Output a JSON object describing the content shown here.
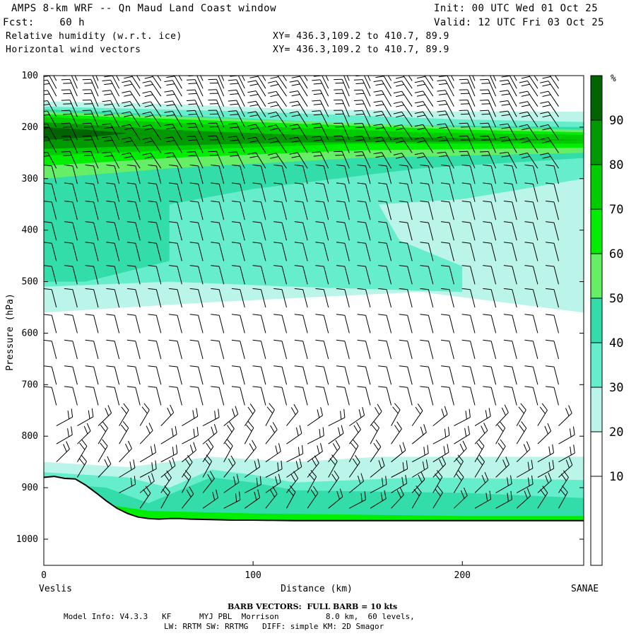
{
  "header": {
    "line1_left": "AMPS 8-km WRF -- Qn Maud Land Coast window",
    "line1_right": "Init: 00 UTC Wed 01 Oct 25",
    "line2_left": "Fcst:    60 h",
    "line2_right": "Valid: 12 UTC Fri 03 Oct 25",
    "line3_left": "Relative humidity (w.r.t. ice)",
    "line3_right": "XY= 436.3,109.2 to 410.7, 89.9",
    "line4_left": "Horizontal wind vectors",
    "line4_right": "XY= 436.3,109.2 to 410.7, 89.9"
  },
  "footer": {
    "barb_title": "BARB VECTORS:  FULL BARB = 10 kts",
    "model_line1": "Model Info: V4.3.3   KF      MYJ PBL  Morrison          8.0 km,  60 levels,",
    "model_line2": "LW: RRTM SW: RRTMG   DIFF: simple KM: 2D Smagor"
  },
  "chart_data": {
    "type": "heatmap",
    "title": "Relative humidity (w.r.t. ice)",
    "xlabel": "Distance (km)",
    "ylabel": "Pressure (hPa)",
    "x_range": [
      0,
      258
    ],
    "y_range": [
      1050,
      100
    ],
    "y_scale": "log",
    "x_ticks": [
      "0",
      "100",
      "200"
    ],
    "x_tick_values": [
      0,
      100,
      200
    ],
    "y_ticks": [
      "100",
      "200",
      "300",
      "400",
      "500",
      "600",
      "700",
      "800",
      "900",
      "1000"
    ],
    "y_tick_values": [
      100,
      200,
      300,
      400,
      500,
      600,
      700,
      800,
      900,
      1000
    ],
    "x_endpoint_left": "Veslis",
    "x_endpoint_right": "SANAE",
    "colorbar": {
      "unit": "%",
      "labels": [
        "90",
        "80",
        "70",
        "60",
        "50",
        "40",
        "30",
        "20",
        "10"
      ],
      "levels": [
        90,
        80,
        70,
        60,
        50,
        40,
        30,
        20,
        10
      ],
      "colors": [
        "#006400",
        "#009900",
        "#00cc00",
        "#00ee00",
        "#66ee66",
        "#33ddaa",
        "#66eecc",
        "#bbf5ea",
        "#ffffff",
        "#ffffff",
        "#ffffff"
      ]
    },
    "fill_colors": {
      "rh30_40": "#bbf5ea",
      "rh40_50": "#66eecc",
      "rh50_60": "#33ddaa",
      "rh60_70": "#66ee66",
      "rh70_80": "#00ee00",
      "rh80_90": "#00cc00",
      "rh90_100": "#009900",
      "rh_core": "#006400"
    },
    "terrain_surface": {
      "x_km": [
        0,
        5,
        10,
        15,
        20,
        25,
        30,
        35,
        40,
        45,
        50,
        55,
        60,
        65,
        70,
        80,
        90,
        100,
        120,
        150,
        200,
        258
      ],
      "p_hpa": [
        880,
        878,
        882,
        883,
        895,
        910,
        926,
        940,
        950,
        957,
        960,
        961,
        960,
        960,
        961,
        962,
        963,
        963,
        964,
        964,
        964,
        964
      ]
    },
    "barb_columns_km": [
      6,
      16,
      26,
      36,
      46,
      56,
      66,
      76,
      86,
      96,
      106,
      116,
      126,
      136,
      146,
      156,
      166,
      176,
      186,
      196,
      206,
      216,
      226,
      236,
      246
    ],
    "barb_levels_hpa": [
      110,
      125,
      140,
      160,
      180,
      200,
      225,
      250,
      280,
      310,
      345,
      380,
      420,
      460,
      505,
      550,
      600,
      650,
      700,
      740,
      780,
      815,
      850,
      880,
      910,
      940
    ]
  }
}
